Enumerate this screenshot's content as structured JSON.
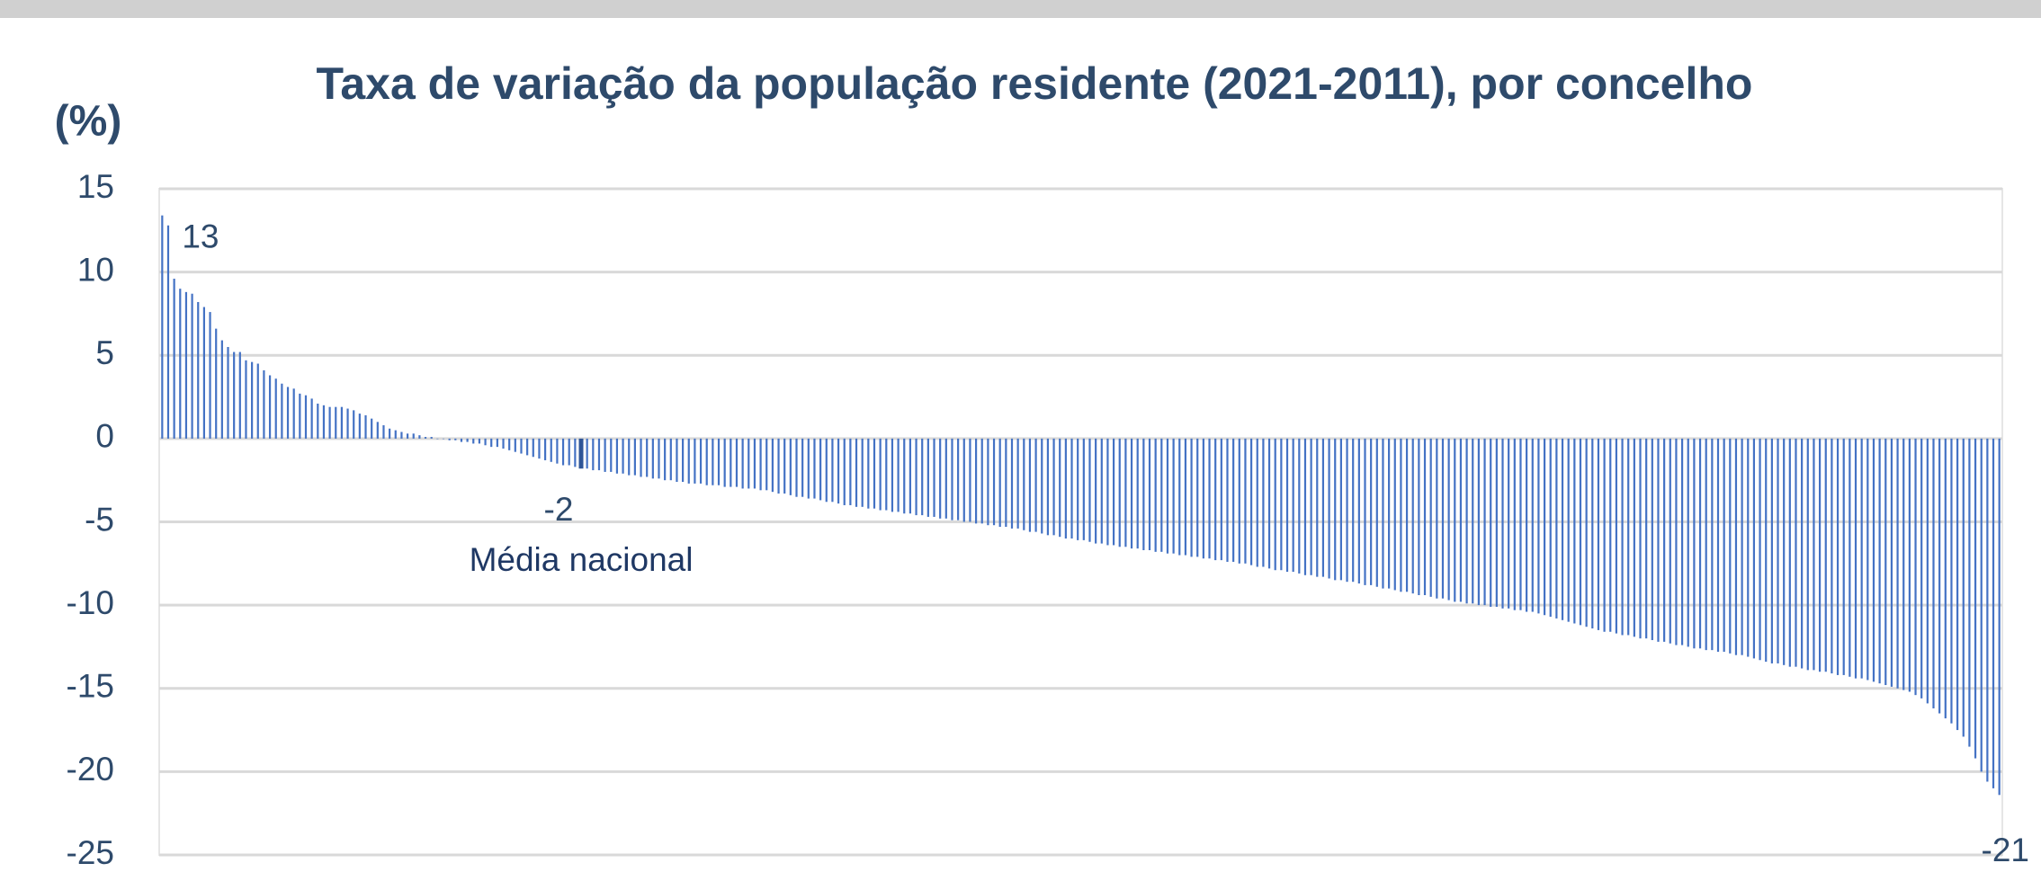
{
  "chart_data": {
    "type": "bar",
    "title": "Taxa de variação da população residente (2021-2011), por concelho",
    "y_axis_label": "(%)",
    "color": "#4472c4",
    "highlight_color": "#2f5597",
    "values": [
      13.4,
      12.8,
      9.6,
      9.0,
      8.8,
      8.7,
      8.2,
      7.9,
      7.6,
      6.6,
      5.9,
      5.5,
      5.2,
      5.2,
      4.7,
      4.6,
      4.5,
      4.1,
      3.8,
      3.6,
      3.3,
      3.1,
      3.0,
      2.7,
      2.6,
      2.4,
      2.1,
      2.0,
      1.9,
      1.9,
      1.9,
      1.8,
      1.7,
      1.5,
      1.4,
      1.2,
      1.0,
      0.8,
      0.6,
      0.5,
      0.4,
      0.3,
      0.3,
      0.2,
      0.1,
      0.1,
      0.0,
      0.0,
      -0.1,
      -0.1,
      -0.2,
      -0.2,
      -0.3,
      -0.3,
      -0.4,
      -0.5,
      -0.5,
      -0.6,
      -0.7,
      -0.8,
      -0.9,
      -1.0,
      -1.1,
      -1.2,
      -1.3,
      -1.4,
      -1.5,
      -1.6,
      -1.6,
      -1.7,
      -1.8,
      -1.8,
      -1.9,
      -1.9,
      -2.0,
      -2.0,
      -2.1,
      -2.1,
      -2.2,
      -2.2,
      -2.3,
      -2.3,
      -2.4,
      -2.4,
      -2.5,
      -2.5,
      -2.6,
      -2.6,
      -2.7,
      -2.7,
      -2.7,
      -2.8,
      -2.8,
      -2.8,
      -2.9,
      -2.9,
      -2.9,
      -3.0,
      -3.0,
      -3.0,
      -3.1,
      -3.1,
      -3.2,
      -3.3,
      -3.3,
      -3.4,
      -3.5,
      -3.5,
      -3.6,
      -3.6,
      -3.7,
      -3.8,
      -3.8,
      -3.9,
      -4.0,
      -4.0,
      -4.1,
      -4.1,
      -4.2,
      -4.2,
      -4.3,
      -4.3,
      -4.4,
      -4.4,
      -4.5,
      -4.5,
      -4.6,
      -4.6,
      -4.7,
      -4.7,
      -4.8,
      -4.8,
      -4.9,
      -4.9,
      -5.0,
      -5.0,
      -5.1,
      -5.1,
      -5.2,
      -5.2,
      -5.3,
      -5.3,
      -5.4,
      -5.4,
      -5.5,
      -5.6,
      -5.6,
      -5.7,
      -5.8,
      -5.8,
      -5.9,
      -6.0,
      -6.0,
      -6.1,
      -6.1,
      -6.2,
      -6.3,
      -6.3,
      -6.4,
      -6.4,
      -6.5,
      -6.5,
      -6.6,
      -6.6,
      -6.7,
      -6.7,
      -6.8,
      -6.8,
      -6.9,
      -6.9,
      -7.0,
      -7.0,
      -7.1,
      -7.1,
      -7.2,
      -7.2,
      -7.3,
      -7.3,
      -7.4,
      -7.4,
      -7.5,
      -7.5,
      -7.6,
      -7.7,
      -7.7,
      -7.8,
      -7.9,
      -7.9,
      -8.0,
      -8.0,
      -8.1,
      -8.2,
      -8.2,
      -8.3,
      -8.3,
      -8.4,
      -8.5,
      -8.5,
      -8.6,
      -8.6,
      -8.7,
      -8.8,
      -8.8,
      -8.9,
      -9.0,
      -9.0,
      -9.1,
      -9.2,
      -9.2,
      -9.3,
      -9.4,
      -9.4,
      -9.5,
      -9.6,
      -9.6,
      -9.7,
      -9.8,
      -9.8,
      -9.9,
      -9.9,
      -10.0,
      -10.0,
      -10.1,
      -10.1,
      -10.2,
      -10.2,
      -10.3,
      -10.3,
      -10.4,
      -10.4,
      -10.5,
      -10.6,
      -10.7,
      -10.8,
      -10.9,
      -11.0,
      -11.1,
      -11.2,
      -11.3,
      -11.4,
      -11.5,
      -11.6,
      -11.6,
      -11.7,
      -11.8,
      -11.8,
      -11.9,
      -12.0,
      -12.0,
      -12.1,
      -12.2,
      -12.2,
      -12.3,
      -12.4,
      -12.4,
      -12.5,
      -12.6,
      -12.6,
      -12.7,
      -12.7,
      -12.8,
      -12.8,
      -12.9,
      -13.0,
      -13.0,
      -13.1,
      -13.2,
      -13.3,
      -13.4,
      -13.5,
      -13.5,
      -13.6,
      -13.7,
      -13.7,
      -13.8,
      -13.9,
      -13.9,
      -14.0,
      -14.0,
      -14.1,
      -14.2,
      -14.2,
      -14.3,
      -14.4,
      -14.4,
      -14.5,
      -14.6,
      -14.7,
      -14.8,
      -14.9,
      -15.0,
      -15.1,
      -15.2,
      -15.4,
      -15.6,
      -15.9,
      -16.2,
      -16.5,
      -16.8,
      -17.1,
      -17.5,
      -17.9,
      -18.5,
      -19.2,
      -20.0,
      -20.6,
      -21.0,
      -21.4
    ],
    "value_labels": {
      "0": "13",
      "70": "-2",
      "307": "-21"
    },
    "annotation": {
      "text": "Média nacional",
      "index": 70
    },
    "ylim": [
      -25,
      15
    ],
    "yticks": [
      15,
      10,
      5,
      0,
      -5,
      -10,
      -15,
      -20,
      -25
    ],
    "grid": true
  }
}
